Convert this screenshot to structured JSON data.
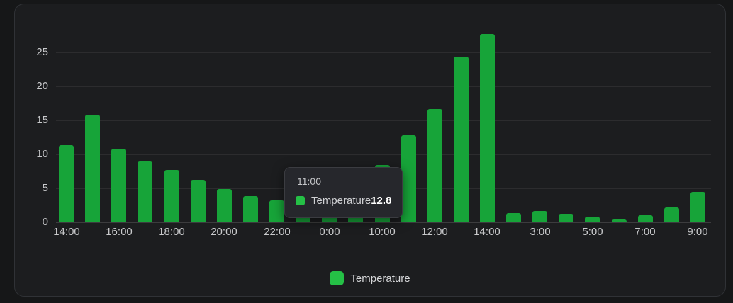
{
  "colors": {
    "page_background": "#161718",
    "panel_background": "#1c1d1f",
    "panel_border": "#303236",
    "axis_text": "#c9cacc",
    "gridline": "rgba(255,255,255,0.07)",
    "bar_green": "#17a439",
    "swatch_green": "#25c046",
    "tooltip_background": "#26272c"
  },
  "chart_data": {
    "type": "bar",
    "title": "",
    "xlabel": "",
    "ylabel": "",
    "grid": true,
    "legend_position": "bottom-center",
    "y_ticks": [
      0,
      5,
      10,
      15,
      20,
      25
    ],
    "ylim": [
      0,
      29
    ],
    "series": [
      {
        "name": "Temperature",
        "color": "#17a439",
        "values": [
          11.3,
          15.8,
          10.8,
          9,
          7.7,
          6.2,
          4.9,
          3.8,
          3.2,
          2.6,
          2.1,
          4,
          8.4,
          12.8,
          16.6,
          24.3,
          27.7,
          1.4,
          1.7,
          1.2,
          0.8,
          0.4,
          1,
          2.2,
          4.5
        ]
      }
    ],
    "x_ticks": [
      {
        "bar_index": 0,
        "label": "14:00"
      },
      {
        "bar_index": 2,
        "label": "16:00"
      },
      {
        "bar_index": 4,
        "label": "18:00"
      },
      {
        "bar_index": 6,
        "label": "20:00"
      },
      {
        "bar_index": 8,
        "label": "22:00"
      },
      {
        "bar_index": 10,
        "label": "0:00"
      },
      {
        "bar_index": 12,
        "label": "10:00"
      },
      {
        "bar_index": 14,
        "label": "12:00"
      },
      {
        "bar_index": 16,
        "label": "14:00"
      },
      {
        "bar_index": 18,
        "label": "3:00"
      },
      {
        "bar_index": 20,
        "label": "5:00"
      },
      {
        "bar_index": 22,
        "label": "7:00"
      },
      {
        "bar_index": 24,
        "label": "9:00"
      }
    ],
    "hovered_bar_index": 13,
    "bars_occluded_by_tooltip": [
      9,
      10,
      11
    ]
  },
  "tooltip": {
    "title": "11:00",
    "series_label": "Temperature",
    "value": "12.8",
    "swatch_color": "#25c046"
  },
  "legend": {
    "label": "Temperature",
    "swatch_color": "#25c046"
  }
}
